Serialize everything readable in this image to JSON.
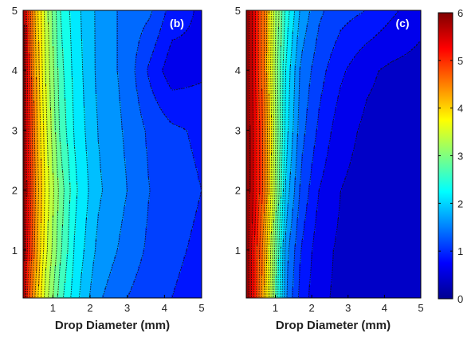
{
  "chart_data": [
    {
      "type": "heatmap",
      "panel_label": "(b)",
      "title": "",
      "xlabel": "Drop Diameter (mm)",
      "ylabel": "",
      "xlim": [
        0.2,
        5
      ],
      "ylim": [
        0.2,
        5
      ],
      "x_ticks": [
        "1",
        "2",
        "3",
        "4",
        "5"
      ],
      "y_ticks": [
        "1",
        "2",
        "3",
        "4",
        "5"
      ],
      "contour_levels": [
        0.25,
        0.5,
        0.75,
        1,
        1.25,
        1.5,
        1.75,
        2,
        2.25,
        2.5,
        2.75,
        3,
        3.25,
        3.5,
        3.75,
        4,
        4.25,
        4.5,
        4.75,
        5,
        5.25,
        5.5,
        5.75
      ],
      "value_x_anchors": [
        0.2,
        0.3,
        0.5,
        0.8,
        1.2,
        1.6,
        2.2,
        3.0,
        3.6,
        4.2,
        5.0
      ],
      "value_y_anchors": [
        0.2,
        1.0,
        2.0,
        3.0,
        4.0,
        5.0
      ],
      "values": [
        [
          6.0,
          5.0,
          4.3,
          3.4,
          2.6,
          2.1,
          1.55,
          1.25,
          1.1,
          1.0,
          0.9
        ],
        [
          6.0,
          5.3,
          4.5,
          3.6,
          2.8,
          2.2,
          1.7,
          1.4,
          1.2,
          1.05,
          0.95
        ],
        [
          6.0,
          5.5,
          4.6,
          3.7,
          2.9,
          2.3,
          1.8,
          1.5,
          1.25,
          1.1,
          1.0
        ],
        [
          6.0,
          5.4,
          4.5,
          3.6,
          2.7,
          2.2,
          1.75,
          1.45,
          1.2,
          1.05,
          0.95
        ],
        [
          6.0,
          5.3,
          4.4,
          3.5,
          2.6,
          2.15,
          1.7,
          1.4,
          0.95,
          0.6,
          0.7
        ],
        [
          6.0,
          5.2,
          4.3,
          3.4,
          2.5,
          2.1,
          1.7,
          1.4,
          1.3,
          0.9,
          0.7
        ]
      ]
    },
    {
      "type": "heatmap",
      "panel_label": "(c)",
      "title": "",
      "xlabel": "Drop Diameter (mm)",
      "ylabel": "",
      "xlim": [
        0.2,
        5
      ],
      "ylim": [
        0.2,
        5
      ],
      "x_ticks": [
        "1",
        "2",
        "3",
        "4",
        "5"
      ],
      "y_ticks": [
        "1",
        "2",
        "3",
        "4",
        "5"
      ],
      "contour_levels": [
        0.25,
        0.5,
        0.75,
        1,
        1.25,
        1.5,
        1.75,
        2,
        2.25,
        2.5,
        2.75,
        3,
        3.25,
        3.5,
        3.75,
        4,
        4.25,
        4.5,
        4.75,
        5,
        5.25,
        5.5,
        5.75
      ],
      "value_x_anchors": [
        0.2,
        0.4,
        0.7,
        1.0,
        1.3,
        1.7,
        2.2,
        2.8,
        3.5,
        4.2,
        5.0
      ],
      "value_y_anchors": [
        0.2,
        1.0,
        2.0,
        3.0,
        4.0,
        5.0
      ],
      "values": [
        [
          6.0,
          5.3,
          4.2,
          2.8,
          1.5,
          0.9,
          0.55,
          0.45,
          0.4,
          0.35,
          0.3
        ],
        [
          6.0,
          5.3,
          4.3,
          2.9,
          1.6,
          1.0,
          0.6,
          0.45,
          0.4,
          0.35,
          0.35
        ],
        [
          6.0,
          5.5,
          4.6,
          3.2,
          1.9,
          1.2,
          0.75,
          0.5,
          0.4,
          0.4,
          0.35
        ],
        [
          6.0,
          5.5,
          4.6,
          3.3,
          2.1,
          1.35,
          0.95,
          0.6,
          0.45,
          0.4,
          0.35
        ],
        [
          6.0,
          5.4,
          4.5,
          3.2,
          2.2,
          1.45,
          1.1,
          0.8,
          0.55,
          0.45,
          0.4
        ],
        [
          6.0,
          5.4,
          4.5,
          3.3,
          2.4,
          1.7,
          1.3,
          1.1,
          1.0,
          0.8,
          0.6
        ]
      ]
    }
  ],
  "colorbar": {
    "min": 0,
    "max": 6,
    "ticks": [
      "0",
      "1",
      "2",
      "3",
      "4",
      "5",
      "6"
    ]
  }
}
